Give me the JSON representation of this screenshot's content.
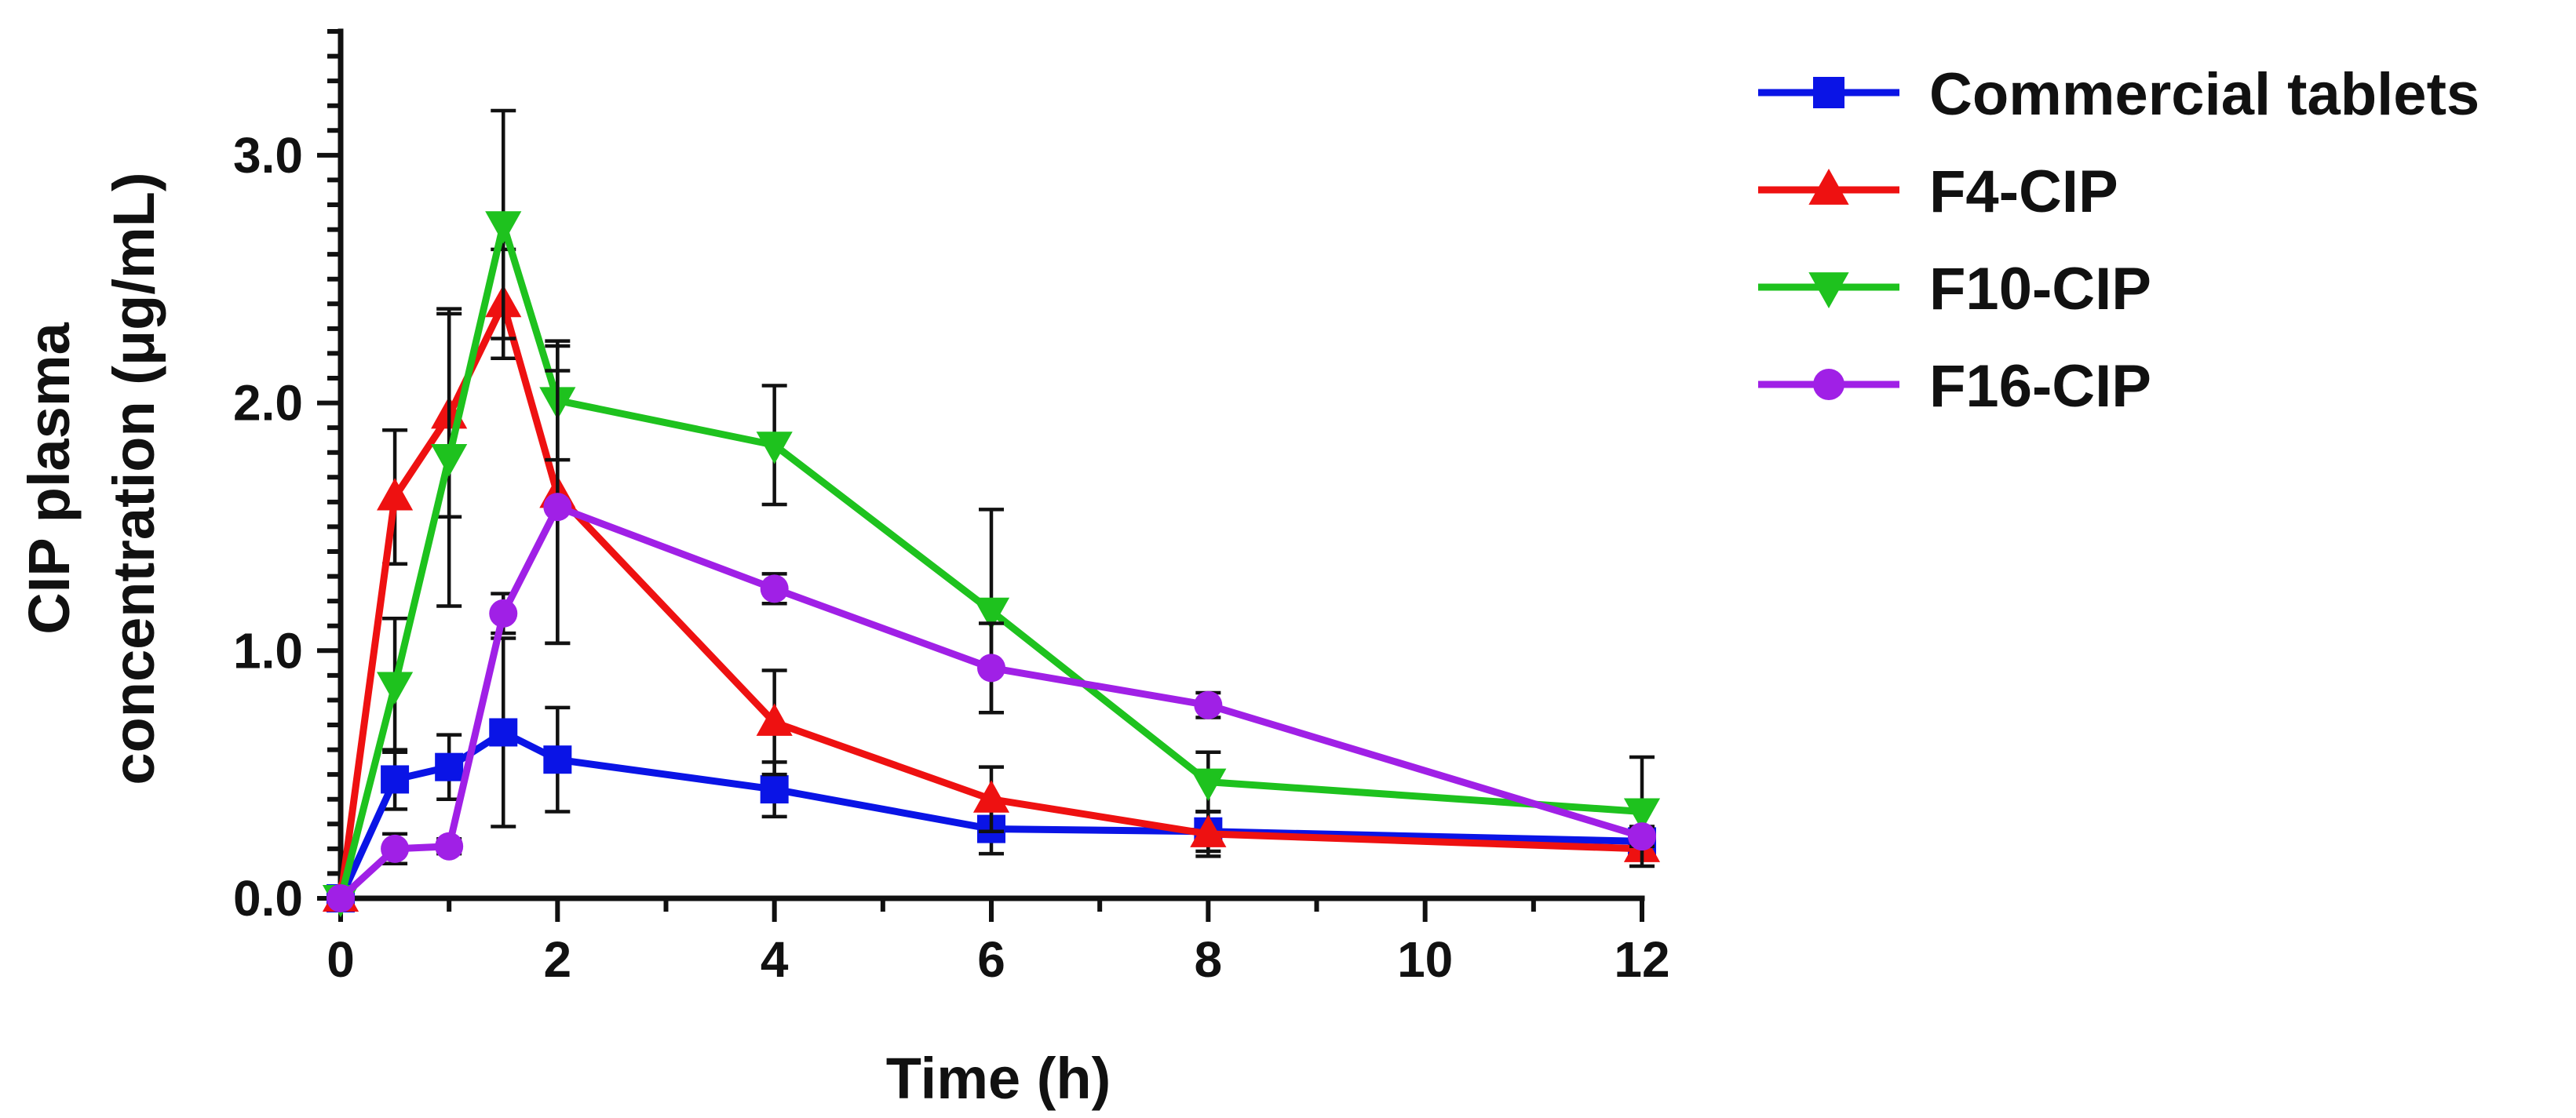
{
  "chart_data": {
    "type": "line",
    "title": "",
    "xlabel": "Time (h)",
    "ylabel_lines": [
      "CIP plasma",
      "concentration (μg/mL)"
    ],
    "xlim": [
      0,
      12
    ],
    "ylim": [
      0,
      3.5
    ],
    "x_ticks": [
      0,
      2,
      4,
      6,
      8,
      10,
      12
    ],
    "x_tick_labels": [
      "0",
      "2",
      "4",
      "6",
      "8",
      "10",
      "12"
    ],
    "y_ticks": [
      0,
      1,
      2,
      3
    ],
    "y_tick_labels": [
      "0.0",
      "1.0",
      "2.0",
      "3.0"
    ],
    "grid": false,
    "legend_position": "right",
    "x": [
      0,
      0.5,
      1,
      1.5,
      2,
      4,
      6,
      8,
      12
    ],
    "series": [
      {
        "name": "Commercial tablets",
        "color": "#0a14e6",
        "marker": "square",
        "values": [
          0.0,
          0.48,
          0.53,
          0.67,
          0.56,
          0.44,
          0.28,
          0.27,
          0.23
        ],
        "errors": [
          0.0,
          0.12,
          0.13,
          0.38,
          0.21,
          0.11,
          0.1,
          0.08,
          0.05
        ]
      },
      {
        "name": "F4-CIP",
        "color": "#ee1111",
        "marker": "triangle-up",
        "values": [
          0.0,
          1.62,
          1.95,
          2.4,
          1.63,
          0.71,
          0.4,
          0.26,
          0.2
        ],
        "errors": [
          0.0,
          0.27,
          0.41,
          0.22,
          0.6,
          0.21,
          0.13,
          0.09,
          0.04
        ]
      },
      {
        "name": "F10-CIP",
        "color": "#1ec21e",
        "marker": "triangle-down",
        "values": [
          0.0,
          0.86,
          1.78,
          2.72,
          2.01,
          1.83,
          1.16,
          0.47,
          0.35
        ],
        "errors": [
          0.0,
          0.27,
          0.6,
          0.46,
          0.24,
          0.24,
          0.41,
          0.12,
          0.22
        ]
      },
      {
        "name": "F16-CIP",
        "color": "#a020e6",
        "marker": "circle",
        "values": [
          0.0,
          0.2,
          0.21,
          1.15,
          1.58,
          1.25,
          0.93,
          0.78,
          0.25
        ],
        "errors": [
          0.0,
          0.06,
          0.03,
          0.08,
          0.55,
          0.06,
          0.18,
          0.05,
          0.04
        ]
      }
    ]
  }
}
